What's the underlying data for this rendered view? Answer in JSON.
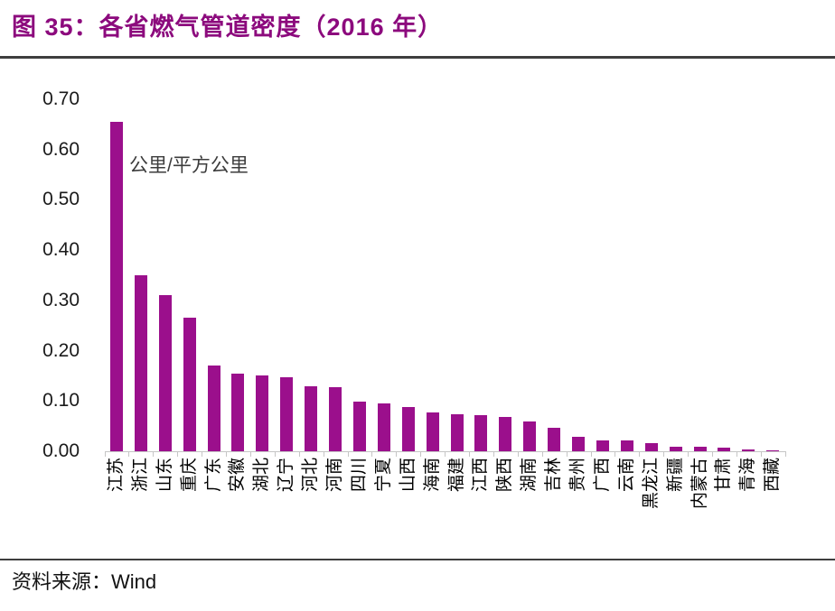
{
  "figure": {
    "title": "图 35：各省燃气管道密度（2016 年）",
    "source_label": "资料来源：",
    "source_value": "Wind"
  },
  "colors": {
    "title": "#8C0A7D",
    "bar": "#9B0F8C",
    "axis": "#C6C6C6"
  },
  "chart_data": {
    "type": "bar",
    "title": "各省燃气管道密度（2016 年）",
    "ylabel": "公里/平方公里",
    "xlabel": "",
    "ylim": [
      0,
      0.7
    ],
    "yticks": [
      "0.00",
      "0.10",
      "0.20",
      "0.30",
      "0.40",
      "0.50",
      "0.60",
      "0.70"
    ],
    "grid": false,
    "legend_position": "none",
    "categories": [
      "江苏",
      "浙江",
      "山东",
      "重庆",
      "广东",
      "安徽",
      "湖北",
      "辽宁",
      "河北",
      "河南",
      "四川",
      "宁夏",
      "山西",
      "海南",
      "福建",
      "江西",
      "陕西",
      "湖南",
      "吉林",
      "贵州",
      "广西",
      "云南",
      "黑龙江",
      "新疆",
      "内蒙古",
      "甘肃",
      "青海",
      "西藏"
    ],
    "values": [
      0.655,
      0.35,
      0.31,
      0.265,
      0.17,
      0.155,
      0.151,
      0.148,
      0.13,
      0.127,
      0.098,
      0.095,
      0.088,
      0.078,
      0.073,
      0.071,
      0.068,
      0.06,
      0.047,
      0.028,
      0.021,
      0.022,
      0.016,
      0.009,
      0.009,
      0.007,
      0.004,
      0.001
    ]
  }
}
